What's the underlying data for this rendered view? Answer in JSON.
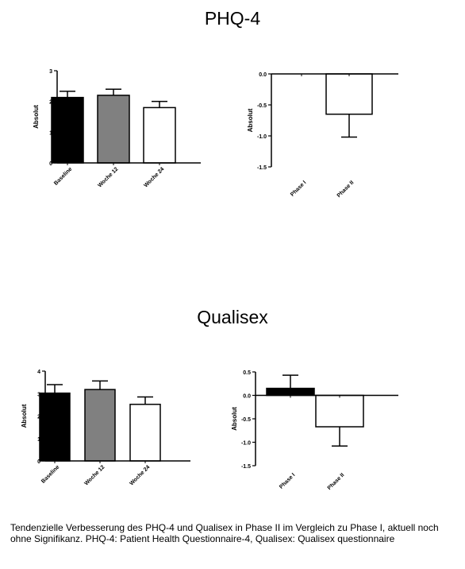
{
  "sections": [
    {
      "title": "PHQ-4"
    },
    {
      "title": "Qualisex"
    }
  ],
  "caption": "Tendenzielle Verbesserung des PHQ-4 und Qualisex in Phase II im Vergleich zu Phase I, aktuell noch ohne Signifikanz. PHQ-4: Patient Health Questionnaire-4, Qualisex: Qualisex questionnaire",
  "colors": {
    "black": "#000000",
    "gray": "#808080",
    "white": "#ffffff"
  },
  "chart_data": [
    {
      "type": "bar",
      "section": "PHQ-4",
      "categories": [
        "Baseline",
        "Woche 12",
        "Woche 24"
      ],
      "values": [
        2.13,
        2.2,
        1.8
      ],
      "errors": [
        0.2,
        0.2,
        0.2
      ],
      "bar_colors": [
        "#000000",
        "#808080",
        "#ffffff"
      ],
      "ylabel": "Absolut",
      "ylim": [
        0,
        3
      ],
      "yticks": [
        0,
        1,
        2,
        3
      ],
      "ytick_labels": [
        "0",
        "1",
        "2",
        "3"
      ]
    },
    {
      "type": "bar",
      "section": "PHQ-4",
      "categories": [
        "Phase I",
        "Phase II"
      ],
      "values": [
        0.0,
        -0.65
      ],
      "errors": [
        0.0,
        0.37
      ],
      "bar_colors": [
        "#ffffff",
        "#ffffff"
      ],
      "ylabel": "Absolut",
      "ylim": [
        -1.5,
        0
      ],
      "yticks": [
        0,
        -0.5,
        -1.0,
        -1.5
      ],
      "ytick_labels": [
        "0.0",
        "-0.5",
        "-1.0",
        "-1.5"
      ]
    },
    {
      "type": "bar",
      "section": "Qualisex",
      "categories": [
        "Baseline",
        "Woche 12",
        "Woche 24"
      ],
      "values": [
        3.02,
        3.18,
        2.52
      ],
      "errors": [
        0.38,
        0.38,
        0.33
      ],
      "bar_colors": [
        "#000000",
        "#808080",
        "#ffffff"
      ],
      "ylabel": "Absolut",
      "ylim": [
        0,
        4
      ],
      "yticks": [
        0,
        1,
        2,
        3,
        4
      ],
      "ytick_labels": [
        "0",
        "1",
        "2",
        "3",
        "4"
      ]
    },
    {
      "type": "bar",
      "section": "Qualisex",
      "categories": [
        "Phase I",
        "Phase II"
      ],
      "values": [
        0.15,
        -0.67
      ],
      "errors": [
        0.28,
        0.41
      ],
      "bar_colors": [
        "#000000",
        "#ffffff"
      ],
      "ylabel": "Absolut",
      "ylim": [
        -1.5,
        0.5
      ],
      "yticks": [
        0.5,
        0.0,
        -0.5,
        -1.0,
        -1.5
      ],
      "ytick_labels": [
        "0.5",
        "0.0",
        "-0.5",
        "-1.0",
        "-1.5"
      ]
    }
  ]
}
